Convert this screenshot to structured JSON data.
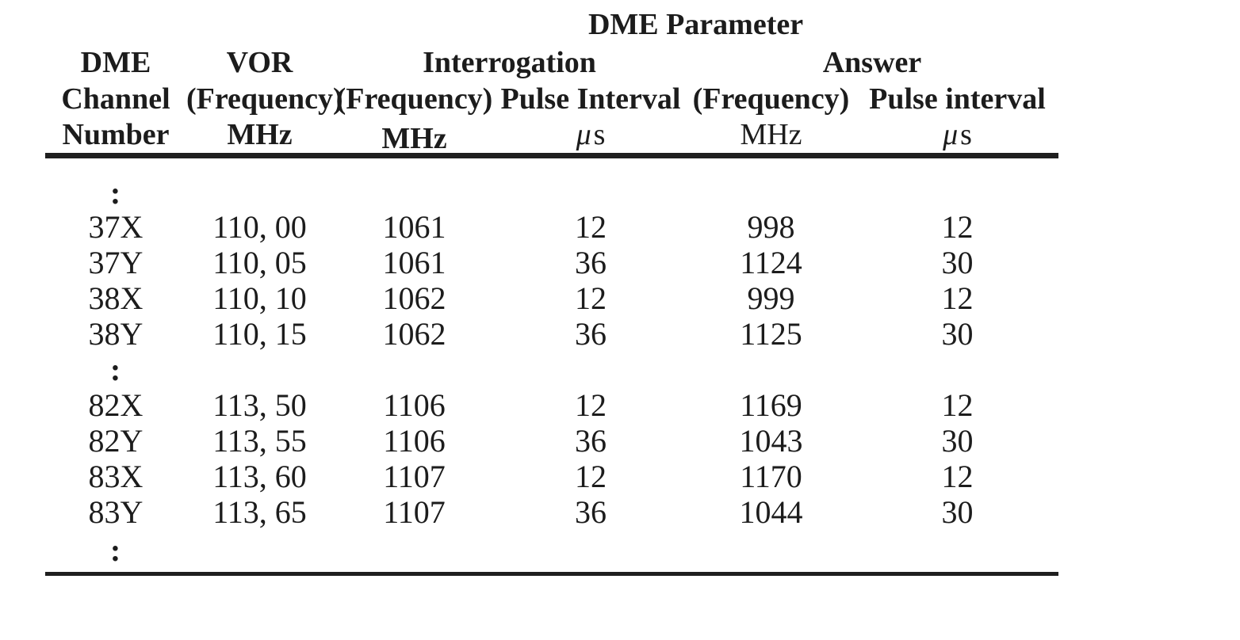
{
  "table": {
    "title": "DME Parameter",
    "header": {
      "channel": {
        "line1": "DME",
        "line2": "Channel",
        "line3": "Number"
      },
      "vor": {
        "line1": "VOR",
        "line2": "(Frequency)",
        "line3": "MHz"
      },
      "interrogation_group": "Interrogation",
      "interrogation_frequency": {
        "line2": "(Frequency)",
        "line3": "MHz"
      },
      "interrogation_pulse": {
        "line2": "Pulse Interval",
        "unit_mu": "μ",
        "unit_s": "s"
      },
      "answer_group": "Answer",
      "answer_frequency": {
        "line2": "(Frequency)",
        "line3": "MHz"
      },
      "answer_pulse": {
        "line2": "Pulse interval",
        "unit_mu": "μ",
        "unit_s": "s"
      }
    },
    "ellipsis": ":",
    "rows": [
      {
        "channel": "37X",
        "vor_mhz": "110, 00",
        "interrogation_mhz": "1061",
        "interrogation_pulse_us": "12",
        "answer_mhz": "998",
        "answer_pulse_us": "12"
      },
      {
        "channel": "37Y",
        "vor_mhz": "110, 05",
        "interrogation_mhz": "1061",
        "interrogation_pulse_us": "36",
        "answer_mhz": "1124",
        "answer_pulse_us": "30"
      },
      {
        "channel": "38X",
        "vor_mhz": "110, 10",
        "interrogation_mhz": "1062",
        "interrogation_pulse_us": "12",
        "answer_mhz": "999",
        "answer_pulse_us": "12"
      },
      {
        "channel": "38Y",
        "vor_mhz": "110, 15",
        "interrogation_mhz": "1062",
        "interrogation_pulse_us": "36",
        "answer_mhz": "1125",
        "answer_pulse_us": "30"
      },
      {
        "channel": "82X",
        "vor_mhz": "113, 50",
        "interrogation_mhz": "1106",
        "interrogation_pulse_us": "12",
        "answer_mhz": "1169",
        "answer_pulse_us": "12"
      },
      {
        "channel": "82Y",
        "vor_mhz": "113, 55",
        "interrogation_mhz": "1106",
        "interrogation_pulse_us": "36",
        "answer_mhz": "1043",
        "answer_pulse_us": "30"
      },
      {
        "channel": "83X",
        "vor_mhz": "113, 60",
        "interrogation_mhz": "1107",
        "interrogation_pulse_us": "12",
        "answer_mhz": "1170",
        "answer_pulse_us": "12"
      },
      {
        "channel": "83Y",
        "vor_mhz": "113, 65",
        "interrogation_mhz": "1107",
        "interrogation_pulse_us": "36",
        "answer_mhz": "1044",
        "answer_pulse_us": "30"
      }
    ]
  }
}
